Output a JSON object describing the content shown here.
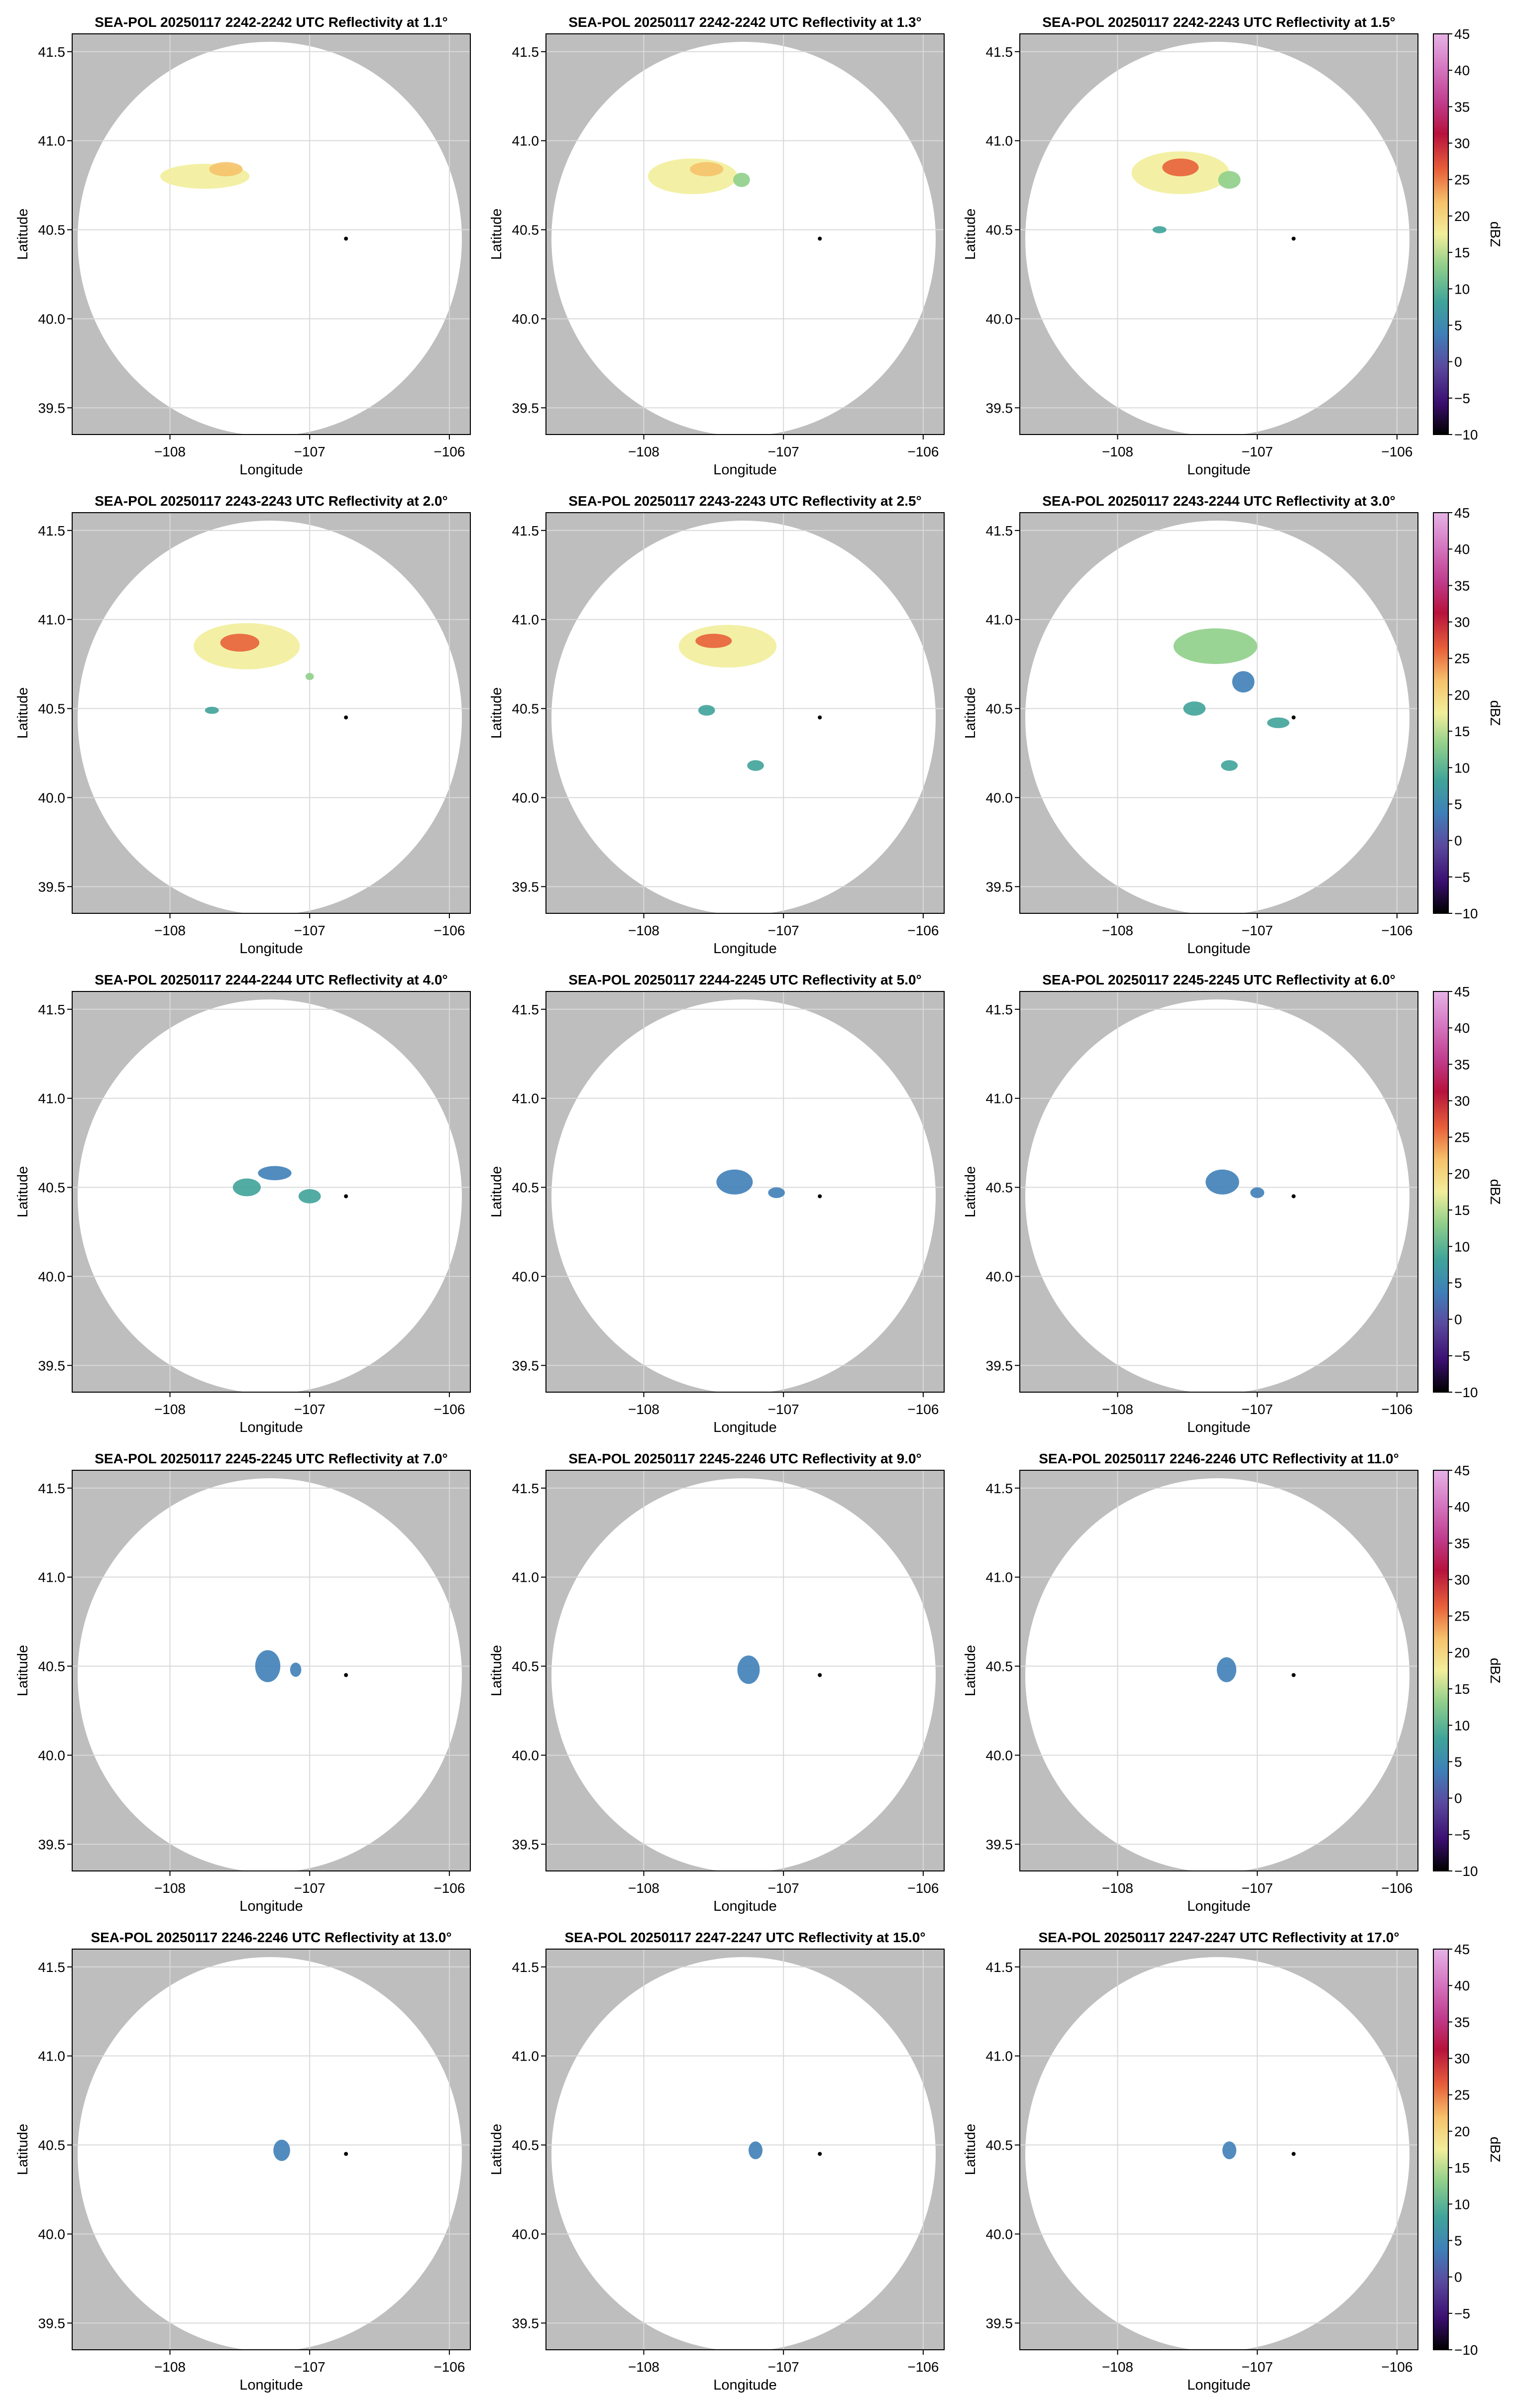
{
  "chart_data": {
    "type": "radar-ppi-grid",
    "colorbar": {
      "label": "dBZ",
      "ticks": [
        "45",
        "40",
        "35",
        "30",
        "25",
        "20",
        "15",
        "10",
        "5",
        "0",
        "−5",
        "−10"
      ],
      "range": [
        -10,
        45
      ],
      "colors": [
        "#000000",
        "#3b0f70",
        "#5a4a9e",
        "#3f7fb8",
        "#3fa39a",
        "#8fcf8a",
        "#f2ee9b",
        "#f6c26b",
        "#e8603a",
        "#b7123c",
        "#c03d8e",
        "#d67ac4",
        "#e6b3e6"
      ]
    },
    "radar_site": {
      "lon": -106.74,
      "lat": 40.45
    },
    "x_ticks": [
      "−108",
      "−107",
      "−106"
    ],
    "y_ticks": [
      "41.5",
      "41.0",
      "40.5",
      "40.0",
      "39.5"
    ],
    "xlabel": "Longitude",
    "ylabel": "Latitude",
    "background_colors": {
      "outside_range": "#bebebe",
      "in_range": "#ffffff"
    },
    "panels": [
      {
        "title": "SEA-POL 20250117 2242-2242 UTC Reflectivity at 1.1°",
        "elevation_deg": 1.1,
        "echoes": [
          {
            "lon": -107.75,
            "lat": 40.8,
            "rlon": 0.32,
            "rlat": 0.07,
            "dbz": 17
          },
          {
            "lon": -107.6,
            "lat": 40.84,
            "rlon": 0.12,
            "rlat": 0.04,
            "dbz": 20
          }
        ]
      },
      {
        "title": "SEA-POL 20250117 2242-2242 UTC Reflectivity at 1.3°",
        "elevation_deg": 1.3,
        "echoes": [
          {
            "lon": -107.65,
            "lat": 40.8,
            "rlon": 0.32,
            "rlat": 0.1,
            "dbz": 18
          },
          {
            "lon": -107.55,
            "lat": 40.84,
            "rlon": 0.12,
            "rlat": 0.04,
            "dbz": 24
          },
          {
            "lon": -107.3,
            "lat": 40.78,
            "rlon": 0.06,
            "rlat": 0.04,
            "dbz": 12
          }
        ]
      },
      {
        "title": "SEA-POL 20250117 2242-2243 UTC Reflectivity at 1.5°",
        "elevation_deg": 1.5,
        "echoes": [
          {
            "lon": -107.55,
            "lat": 40.82,
            "rlon": 0.35,
            "rlat": 0.12,
            "dbz": 18
          },
          {
            "lon": -107.55,
            "lat": 40.85,
            "rlon": 0.13,
            "rlat": 0.05,
            "dbz": 27
          },
          {
            "lon": -107.2,
            "lat": 40.78,
            "rlon": 0.08,
            "rlat": 0.05,
            "dbz": 12
          },
          {
            "lon": -107.7,
            "lat": 40.5,
            "rlon": 0.05,
            "rlat": 0.02,
            "dbz": 10
          }
        ]
      },
      {
        "title": "SEA-POL 20250117 2243-2243 UTC Reflectivity at 2.0°",
        "elevation_deg": 2.0,
        "echoes": [
          {
            "lon": -107.45,
            "lat": 40.85,
            "rlon": 0.38,
            "rlat": 0.13,
            "dbz": 17
          },
          {
            "lon": -107.5,
            "lat": 40.87,
            "rlon": 0.14,
            "rlat": 0.05,
            "dbz": 28
          },
          {
            "lon": -107.7,
            "lat": 40.49,
            "rlon": 0.05,
            "rlat": 0.02,
            "dbz": 10
          },
          {
            "lon": -107.0,
            "lat": 40.68,
            "rlon": 0.03,
            "rlat": 0.02,
            "dbz": 12
          }
        ]
      },
      {
        "title": "SEA-POL 20250117 2243-2243 UTC Reflectivity at 2.5°",
        "elevation_deg": 2.5,
        "echoes": [
          {
            "lon": -107.4,
            "lat": 40.85,
            "rlon": 0.35,
            "rlat": 0.12,
            "dbz": 16
          },
          {
            "lon": -107.5,
            "lat": 40.88,
            "rlon": 0.13,
            "rlat": 0.04,
            "dbz": 25
          },
          {
            "lon": -107.55,
            "lat": 40.49,
            "rlon": 0.06,
            "rlat": 0.03,
            "dbz": 8
          },
          {
            "lon": -107.2,
            "lat": 40.18,
            "rlon": 0.06,
            "rlat": 0.03,
            "dbz": 8
          }
        ]
      },
      {
        "title": "SEA-POL 20250117 2243-2244 UTC Reflectivity at 3.0°",
        "elevation_deg": 3.0,
        "echoes": [
          {
            "lon": -107.3,
            "lat": 40.85,
            "rlon": 0.3,
            "rlat": 0.1,
            "dbz": 14
          },
          {
            "lon": -107.45,
            "lat": 40.5,
            "rlon": 0.08,
            "rlat": 0.04,
            "dbz": 7
          },
          {
            "lon": -106.85,
            "lat": 40.42,
            "rlon": 0.08,
            "rlat": 0.03,
            "dbz": 10
          },
          {
            "lon": -107.2,
            "lat": 40.18,
            "rlon": 0.06,
            "rlat": 0.03,
            "dbz": 8
          },
          {
            "lon": -107.1,
            "lat": 40.65,
            "rlon": 0.08,
            "rlat": 0.06,
            "dbz": 6
          }
        ]
      },
      {
        "title": "SEA-POL 20250117 2244-2244 UTC Reflectivity at 4.0°",
        "elevation_deg": 4.0,
        "echoes": [
          {
            "lon": -107.45,
            "lat": 40.5,
            "rlon": 0.1,
            "rlat": 0.05,
            "dbz": 7
          },
          {
            "lon": -107.25,
            "lat": 40.58,
            "rlon": 0.12,
            "rlat": 0.04,
            "dbz": 5
          },
          {
            "lon": -107.0,
            "lat": 40.45,
            "rlon": 0.08,
            "rlat": 0.04,
            "dbz": 9
          }
        ]
      },
      {
        "title": "SEA-POL 20250117 2244-2245 UTC Reflectivity at 5.0°",
        "elevation_deg": 5.0,
        "echoes": [
          {
            "lon": -107.35,
            "lat": 40.53,
            "rlon": 0.13,
            "rlat": 0.07,
            "dbz": 4
          },
          {
            "lon": -107.05,
            "lat": 40.47,
            "rlon": 0.06,
            "rlat": 0.03,
            "dbz": 4
          }
        ]
      },
      {
        "title": "SEA-POL 20250117 2245-2245 UTC Reflectivity at 6.0°",
        "elevation_deg": 6.0,
        "echoes": [
          {
            "lon": -107.25,
            "lat": 40.53,
            "rlon": 0.12,
            "rlat": 0.07,
            "dbz": 2
          },
          {
            "lon": -107.0,
            "lat": 40.47,
            "rlon": 0.05,
            "rlat": 0.03,
            "dbz": 3
          }
        ]
      },
      {
        "title": "SEA-POL 20250117 2245-2245 UTC Reflectivity at 7.0°",
        "elevation_deg": 7.0,
        "echoes": [
          {
            "lon": -107.3,
            "lat": 40.5,
            "rlon": 0.09,
            "rlat": 0.09,
            "dbz": 2
          },
          {
            "lon": -107.1,
            "lat": 40.48,
            "rlon": 0.04,
            "rlat": 0.04,
            "dbz": 3
          }
        ]
      },
      {
        "title": "SEA-POL 20250117 2245-2246 UTC Reflectivity at 9.0°",
        "elevation_deg": 9.0,
        "echoes": [
          {
            "lon": -107.25,
            "lat": 40.48,
            "rlon": 0.08,
            "rlat": 0.08,
            "dbz": 3
          }
        ]
      },
      {
        "title": "SEA-POL 20250117 2246-2246 UTC Reflectivity at 11.0°",
        "elevation_deg": 11.0,
        "echoes": [
          {
            "lon": -107.22,
            "lat": 40.48,
            "rlon": 0.07,
            "rlat": 0.07,
            "dbz": 3
          }
        ]
      },
      {
        "title": "SEA-POL 20250117 2246-2246 UTC Reflectivity at 13.0°",
        "elevation_deg": 13.0,
        "echoes": [
          {
            "lon": -107.2,
            "lat": 40.47,
            "rlon": 0.06,
            "rlat": 0.06,
            "dbz": 3
          }
        ]
      },
      {
        "title": "SEA-POL 20250117 2247-2247 UTC Reflectivity at 15.0°",
        "elevation_deg": 15.0,
        "echoes": [
          {
            "lon": -107.2,
            "lat": 40.47,
            "rlon": 0.05,
            "rlat": 0.05,
            "dbz": 3
          }
        ]
      },
      {
        "title": "SEA-POL 20250117 2247-2247 UTC Reflectivity at 17.0°",
        "elevation_deg": 17.0,
        "echoes": [
          {
            "lon": -107.2,
            "lat": 40.47,
            "rlon": 0.05,
            "rlat": 0.05,
            "dbz": 3
          }
        ]
      }
    ],
    "axis_ranges": {
      "lon": [
        -108.7,
        -105.85
      ],
      "lat": [
        39.35,
        41.6
      ]
    },
    "grid": true
  }
}
